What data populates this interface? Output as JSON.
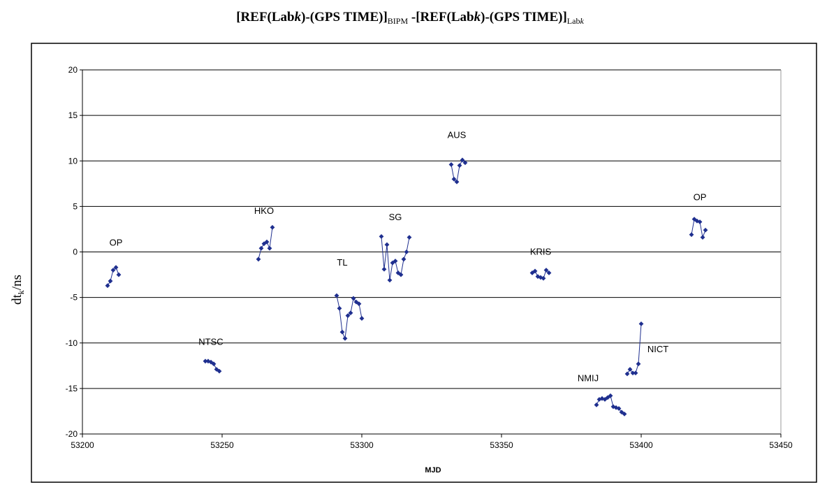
{
  "title": {
    "part1": "[REF(Lab",
    "k1": "k",
    "part2": ")-(GPS TIME)]",
    "sub1": "BIPM",
    "part3": " -[REF(Lab",
    "k2": "k",
    "part4": ")-(GPS TIME)]",
    "sub2": "Lab",
    "sub2k": "k"
  },
  "chart_data": {
    "type": "scatter",
    "xlabel": "MJD",
    "ylabel": "dt",
    "ylabel_sub": "k",
    "ylabel_unit": "/ns",
    "xlim": [
      53200,
      53450
    ],
    "ylim": [
      -20,
      20
    ],
    "xticks": [
      53200,
      53250,
      53300,
      53350,
      53400,
      53450
    ],
    "yticks": [
      -20,
      -15,
      -10,
      -5,
      0,
      5,
      10,
      15,
      20
    ],
    "grid": "horizontal",
    "marker_color": "#1F2F8F",
    "series": [
      {
        "name": "OP",
        "points": [
          [
            53209,
            -3.7
          ],
          [
            53210,
            -3.2
          ],
          [
            53211,
            -2.0
          ],
          [
            53212,
            -1.7
          ],
          [
            53213,
            -2.5
          ]
        ]
      },
      {
        "name": "NTSC",
        "points": [
          [
            53244,
            -12.0
          ],
          [
            53245,
            -12.0
          ],
          [
            53246,
            -12.1
          ],
          [
            53247,
            -12.3
          ],
          [
            53248,
            -12.9
          ],
          [
            53249,
            -13.1
          ]
        ]
      },
      {
        "name": "HKO",
        "points": [
          [
            53263,
            -0.8
          ],
          [
            53264,
            0.4
          ],
          [
            53265,
            0.9
          ],
          [
            53266,
            1.1
          ],
          [
            53267,
            0.4
          ],
          [
            53268,
            2.7
          ]
        ]
      },
      {
        "name": "TL",
        "points": [
          [
            53291,
            -4.8
          ],
          [
            53292,
            -6.2
          ],
          [
            53293,
            -8.8
          ],
          [
            53294,
            -9.5
          ],
          [
            53295,
            -7.0
          ],
          [
            53296,
            -6.7
          ],
          [
            53297,
            -5.1
          ],
          [
            53298,
            -5.5
          ],
          [
            53299,
            -5.7
          ],
          [
            53300,
            -7.3
          ]
        ]
      },
      {
        "name": "SG",
        "points": [
          [
            53307,
            1.7
          ],
          [
            53308,
            -1.9
          ],
          [
            53309,
            0.8
          ],
          [
            53310,
            -3.1
          ],
          [
            53311,
            -1.2
          ],
          [
            53312,
            -1.0
          ],
          [
            53313,
            -2.3
          ],
          [
            53314,
            -2.5
          ],
          [
            53315,
            -0.8
          ],
          [
            53316,
            0.0
          ],
          [
            53317,
            1.6
          ]
        ]
      },
      {
        "name": "AUS",
        "points": [
          [
            53332,
            9.6
          ],
          [
            53333,
            8.0
          ],
          [
            53334,
            7.7
          ],
          [
            53335,
            9.5
          ],
          [
            53336,
            10.1
          ],
          [
            53337,
            9.8
          ]
        ]
      },
      {
        "name": "KRIS",
        "points": [
          [
            53361,
            -2.3
          ],
          [
            53362,
            -2.1
          ],
          [
            53363,
            -2.7
          ],
          [
            53364,
            -2.8
          ],
          [
            53365,
            -2.9
          ],
          [
            53366,
            -2.0
          ],
          [
            53367,
            -2.3
          ]
        ]
      },
      {
        "name": "NMIJ",
        "points": [
          [
            53384,
            -16.8
          ],
          [
            53385,
            -16.2
          ],
          [
            53386,
            -16.1
          ],
          [
            53387,
            -16.2
          ],
          [
            53388,
            -16.0
          ],
          [
            53389,
            -15.8
          ],
          [
            53390,
            -17.0
          ],
          [
            53391,
            -17.1
          ],
          [
            53392,
            -17.2
          ],
          [
            53393,
            -17.6
          ],
          [
            53394,
            -17.8
          ]
        ]
      },
      {
        "name": "NICT",
        "points": [
          [
            53395,
            -13.4
          ],
          [
            53396,
            -12.9
          ],
          [
            53397,
            -13.3
          ],
          [
            53398,
            -13.3
          ],
          [
            53399,
            -12.3
          ],
          [
            53400,
            -7.9
          ]
        ]
      },
      {
        "name": "OP",
        "points": [
          [
            53418,
            1.9
          ],
          [
            53419,
            3.6
          ],
          [
            53420,
            3.4
          ],
          [
            53421,
            3.3
          ],
          [
            53422,
            1.6
          ],
          [
            53423,
            2.4
          ]
        ]
      }
    ],
    "annotations": [
      {
        "text": "OP",
        "x": 53212,
        "y": 0.7
      },
      {
        "text": "NTSC",
        "x": 53246,
        "y": -10.2
      },
      {
        "text": "HKO",
        "x": 53265,
        "y": 4.2
      },
      {
        "text": "TL",
        "x": 53293,
        "y": -1.5
      },
      {
        "text": "SG",
        "x": 53312,
        "y": 3.5
      },
      {
        "text": "AUS",
        "x": 53334,
        "y": 12.5
      },
      {
        "text": "KRIS",
        "x": 53364,
        "y": -0.3
      },
      {
        "text": "NMIJ",
        "x": 53381,
        "y": -14.2
      },
      {
        "text": "NICT",
        "x": 53406,
        "y": -11.0
      },
      {
        "text": "OP",
        "x": 53421,
        "y": 5.7
      }
    ]
  }
}
